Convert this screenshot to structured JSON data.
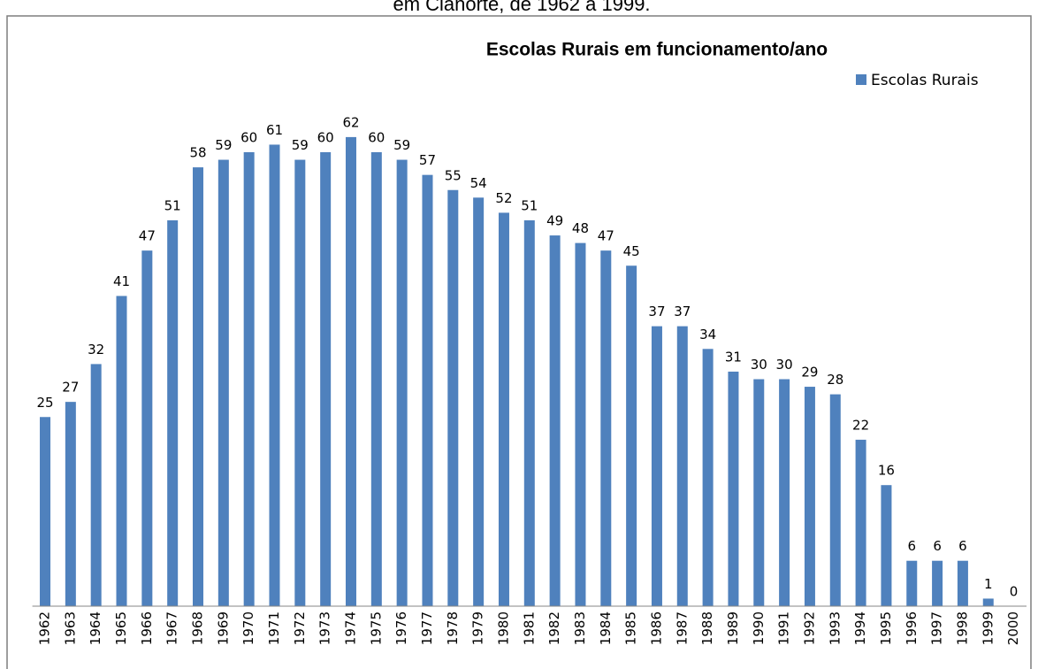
{
  "caption": "em Cianorte, de 1962 a 1999.",
  "chart_data": {
    "type": "bar",
    "title": "Escolas Rurais em funcionamento/ano",
    "categories": [
      "1962",
      "1963",
      "1964",
      "1965",
      "1966",
      "1967",
      "1968",
      "1969",
      "1970",
      "1971",
      "1972",
      "1973",
      "1974",
      "1975",
      "1976",
      "1977",
      "1978",
      "1979",
      "1980",
      "1981",
      "1982",
      "1983",
      "1984",
      "1985",
      "1986",
      "1987",
      "1988",
      "1989",
      "1990",
      "1991",
      "1992",
      "1993",
      "1994",
      "1995",
      "1996",
      "1997",
      "1998",
      "1999",
      "2000"
    ],
    "series": [
      {
        "name": "Escolas Rurais",
        "color": "#4f81bd",
        "values": [
          25,
          27,
          32,
          41,
          47,
          51,
          58,
          59,
          60,
          61,
          59,
          60,
          62,
          60,
          59,
          57,
          55,
          54,
          52,
          51,
          49,
          48,
          47,
          45,
          37,
          37,
          34,
          31,
          30,
          30,
          29,
          28,
          22,
          16,
          6,
          6,
          6,
          1,
          0
        ]
      }
    ],
    "ylim": [
      0,
      70
    ],
    "grid": false,
    "legend": "top-right"
  }
}
